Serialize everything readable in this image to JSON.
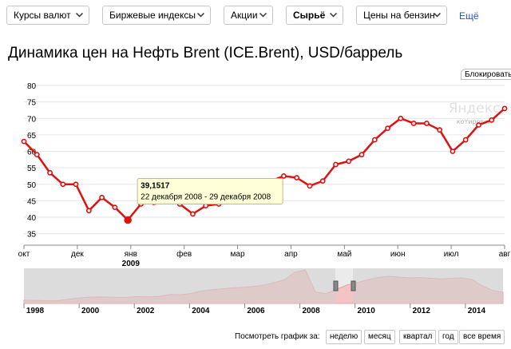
{
  "toolbar": {
    "items": [
      {
        "label": "Курсы валют",
        "active": false
      },
      {
        "label": "Биржевые индексы",
        "active": false
      },
      {
        "label": "Акции",
        "active": false
      },
      {
        "label": "Сырьё",
        "active": true
      },
      {
        "label": "Цены на бензин",
        "active": false
      }
    ],
    "more_label": "Ещё"
  },
  "page_title": "Динамика цен на Нефть Brent (ICE.Brent), USD/баррель",
  "block_button": "Блокировать..",
  "watermark": {
    "brand": "Яндекс",
    "sub": "котировки"
  },
  "chart_data": {
    "type": "line",
    "title": "Динамика цен на Нефть Brent (ICE.Brent), USD/баррель",
    "yticks": [
      35,
      40,
      45,
      50,
      55,
      60,
      65,
      70,
      75,
      80
    ],
    "ylim": [
      32,
      80
    ],
    "month_labels": [
      "окт",
      "дек",
      "янв",
      "фев",
      "мар",
      "апр",
      "май",
      "июн",
      "июл",
      "авг"
    ],
    "year_label": "2009",
    "series": [
      {
        "color": "#e01010",
        "values": [
          63.0,
          59.0,
          53.5,
          50.0,
          50.0,
          42.0,
          46.0,
          43.0,
          39.15,
          44.0,
          44.5,
          48.0,
          44.0,
          41.0,
          43.5,
          44.0,
          45.0,
          49.0,
          50.5,
          51.0,
          52.5,
          52.0,
          49.5,
          51.0,
          56.0,
          57.0,
          59.0,
          63.5,
          67.0,
          70.0,
          68.5,
          68.5,
          66.5,
          60.0,
          63.5,
          68.0,
          69.5,
          73.0
        ]
      }
    ],
    "tooltip": {
      "value": "39,1517",
      "period": "22 декабря 2008 - 29 декабря 2008"
    }
  },
  "navigator": {
    "years": [
      "1998",
      "2000",
      "2002",
      "2004",
      "2006",
      "2008",
      "2010",
      "2012",
      "2014"
    ],
    "history": [
      14,
      13,
      12,
      11,
      16,
      22,
      26,
      28,
      27,
      25,
      26,
      29,
      28,
      30,
      38,
      37,
      42,
      52,
      58,
      62,
      66,
      68,
      72,
      78,
      88,
      100,
      132,
      142,
      48,
      42,
      60,
      78,
      88,
      100,
      110,
      115,
      112,
      108,
      110,
      107,
      104,
      106,
      108,
      102,
      75,
      55,
      48
    ]
  },
  "period_selector": {
    "label": "Посмотреть график за:",
    "options": [
      "неделю",
      "месяц",
      "квартал",
      "год",
      "все время"
    ]
  }
}
